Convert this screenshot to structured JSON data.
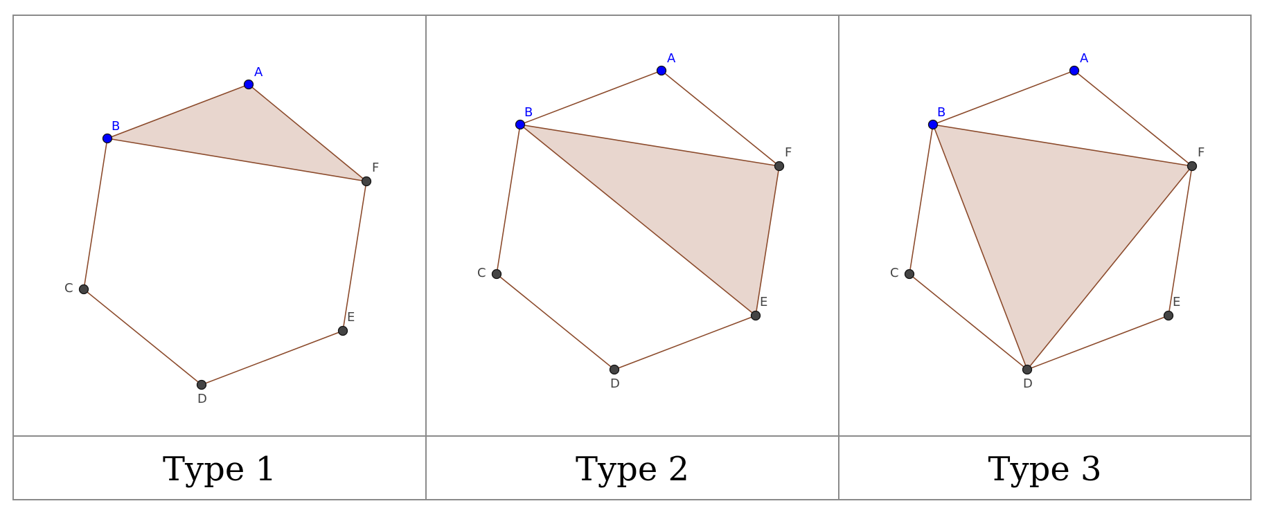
{
  "panels": [
    {
      "caption": "Type 1",
      "triangle": [
        "A",
        "B",
        "F"
      ],
      "diagonals": [
        [
          "B",
          "F"
        ]
      ],
      "points": [
        {
          "label": "A",
          "color": "blue"
        },
        {
          "label": "B",
          "color": "blue"
        },
        {
          "label": "C",
          "color": "dark"
        },
        {
          "label": "D",
          "color": "dark"
        },
        {
          "label": "E",
          "color": "dark"
        },
        {
          "label": "F",
          "color": "dark"
        }
      ]
    },
    {
      "caption": "Type 2",
      "triangle": [
        "B",
        "E",
        "F"
      ],
      "diagonals": [
        [
          "B",
          "F"
        ],
        [
          "B",
          "E"
        ]
      ],
      "points": [
        {
          "label": "A",
          "color": "blue"
        },
        {
          "label": "B",
          "color": "blue"
        },
        {
          "label": "C",
          "color": "dark"
        },
        {
          "label": "D",
          "color": "dark"
        },
        {
          "label": "E",
          "color": "dark"
        },
        {
          "label": "F",
          "color": "dark"
        }
      ]
    },
    {
      "caption": "Type 3",
      "triangle": [
        "B",
        "D",
        "F"
      ],
      "diagonals": [
        [
          "B",
          "F"
        ],
        [
          "B",
          "D"
        ],
        [
          "D",
          "F"
        ]
      ],
      "points": [
        {
          "label": "A",
          "color": "blue"
        },
        {
          "label": "B",
          "color": "blue"
        },
        {
          "label": "C",
          "color": "dark"
        },
        {
          "label": "D",
          "color": "dark"
        },
        {
          "label": "E",
          "color": "dark"
        },
        {
          "label": "F",
          "color": "dark"
        }
      ]
    }
  ],
  "colors": {
    "edge": "#8b4a2b",
    "fill": "#e8d6ce",
    "point_blue": "#0000ff",
    "point_dark": "#444444",
    "border": "#8a8a8a"
  }
}
